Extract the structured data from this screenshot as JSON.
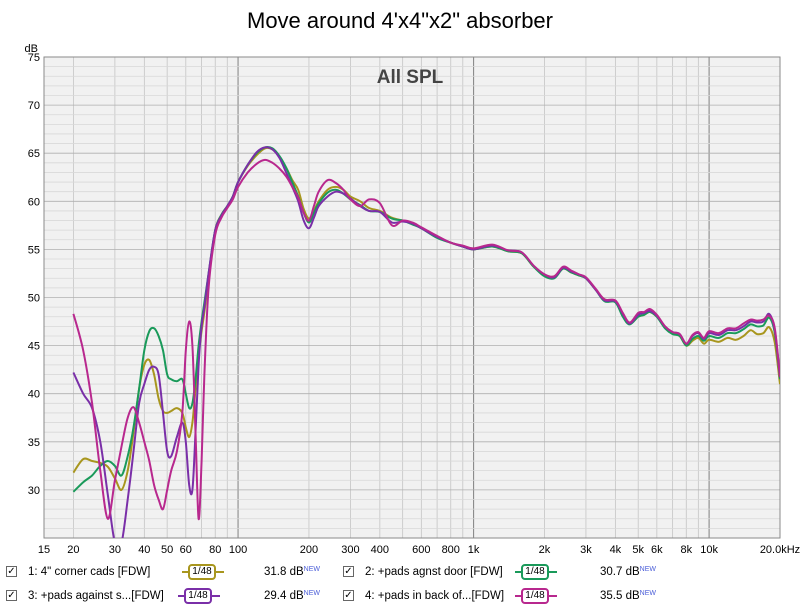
{
  "title": "Move around 4'x4\"x2\" absorber",
  "chart_data": {
    "type": "line",
    "annotation": "All SPL",
    "ylabel": "dB",
    "xunit": "Hz",
    "xscale": "log",
    "xlim": [
      15,
      20000
    ],
    "ylim": [
      25,
      75
    ],
    "yticks": [
      30,
      35,
      40,
      45,
      50,
      55,
      60,
      65,
      70,
      75
    ],
    "xticks": [
      {
        "v": 15,
        "label": "15"
      },
      {
        "v": 20,
        "label": "20"
      },
      {
        "v": 30,
        "label": "30"
      },
      {
        "v": 40,
        "label": "40"
      },
      {
        "v": 50,
        "label": "50"
      },
      {
        "v": 60,
        "label": "60"
      },
      {
        "v": 80,
        "label": "80"
      },
      {
        "v": 100,
        "label": "100"
      },
      {
        "v": 200,
        "label": "200"
      },
      {
        "v": 300,
        "label": "300"
      },
      {
        "v": 400,
        "label": "400"
      },
      {
        "v": 600,
        "label": "600"
      },
      {
        "v": 800,
        "label": "800"
      },
      {
        "v": 1000,
        "label": "1k"
      },
      {
        "v": 2000,
        "label": "2k"
      },
      {
        "v": 3000,
        "label": "3k"
      },
      {
        "v": 4000,
        "label": "4k"
      },
      {
        "v": 5000,
        "label": "5k"
      },
      {
        "v": 6000,
        "label": "6k"
      },
      {
        "v": 8000,
        "label": "8k"
      },
      {
        "v": 10000,
        "label": "10k"
      },
      {
        "v": 20000,
        "label": "20.0kHz"
      }
    ],
    "grid": true,
    "series": [
      {
        "name": "1: 4\" corner cads [FDW]",
        "color": "#a8961e",
        "x": [
          20,
          22,
          24,
          26,
          28,
          30,
          32,
          34,
          36,
          38,
          40,
          42,
          44,
          46,
          48,
          50,
          52,
          55,
          58,
          60,
          62,
          64,
          66,
          68,
          70,
          72,
          75,
          80,
          85,
          90,
          95,
          100,
          110,
          120,
          130,
          140,
          150,
          160,
          170,
          180,
          190,
          200,
          210,
          220,
          240,
          260,
          280,
          300,
          330,
          360,
          400,
          450,
          500,
          550,
          600,
          700,
          800,
          900,
          1000,
          1200,
          1400,
          1600,
          1800,
          2000,
          2200,
          2400,
          2600,
          2800,
          3000,
          3300,
          3600,
          4000,
          4300,
          4600,
          5000,
          5300,
          5600,
          6000,
          6500,
          7000,
          7500,
          8000,
          8500,
          9000,
          9500,
          10000,
          11000,
          12000,
          13000,
          14000,
          15000,
          16000,
          17000,
          18000,
          19000,
          20000
        ],
        "y": [
          31.8,
          33.2,
          33.0,
          32.8,
          32.4,
          31.2,
          30.0,
          32.0,
          36.0,
          40.5,
          43.0,
          43.5,
          42.0,
          39.5,
          38.2,
          38.0,
          38.2,
          38.5,
          38.0,
          36.5,
          35.5,
          37.0,
          40.5,
          44.0,
          46.5,
          48.5,
          52.0,
          57.0,
          58.6,
          59.5,
          60.5,
          62.0,
          63.7,
          64.8,
          65.5,
          65.4,
          64.6,
          63.5,
          62.2,
          61.2,
          59.2,
          58.2,
          59.0,
          60.0,
          61.2,
          61.5,
          61.2,
          60.5,
          60.0,
          59.3,
          59.0,
          58.3,
          58.0,
          57.7,
          57.2,
          56.3,
          55.7,
          55.3,
          55.0,
          55.3,
          54.8,
          54.6,
          53.2,
          52.3,
          52.2,
          53.0,
          52.6,
          52.3,
          52.0,
          50.8,
          49.8,
          49.6,
          48.3,
          47.3,
          48.0,
          48.2,
          48.5,
          48.0,
          47.0,
          46.3,
          46.0,
          45.0,
          45.5,
          45.8,
          45.2,
          45.6,
          45.4,
          45.8,
          45.6,
          46.0,
          46.6,
          46.2,
          46.3,
          46.9,
          45.3,
          41.0
        ]
      },
      {
        "name": "2: +pads agnst door [FDW]",
        "color": "#1a9a5a",
        "x": [
          20,
          22,
          24,
          26,
          28,
          30,
          32,
          34,
          36,
          38,
          40,
          42,
          44,
          46,
          48,
          50,
          52,
          55,
          58,
          60,
          62,
          64,
          66,
          68,
          70,
          72,
          75,
          80,
          85,
          90,
          95,
          100,
          110,
          120,
          130,
          140,
          150,
          160,
          170,
          180,
          190,
          200,
          210,
          220,
          240,
          260,
          280,
          300,
          330,
          360,
          400,
          450,
          500,
          550,
          600,
          700,
          800,
          900,
          1000,
          1200,
          1400,
          1600,
          1800,
          2000,
          2200,
          2400,
          2600,
          2800,
          3000,
          3300,
          3600,
          4000,
          4300,
          4600,
          5000,
          5300,
          5600,
          6000,
          6500,
          7000,
          7500,
          8000,
          8500,
          9000,
          9500,
          10000,
          11000,
          12000,
          13000,
          14000,
          15000,
          16000,
          17000,
          18000,
          19000,
          20000
        ],
        "y": [
          29.8,
          30.8,
          31.5,
          32.5,
          33.0,
          32.5,
          31.5,
          33.5,
          36.5,
          40.5,
          44.5,
          46.5,
          46.8,
          46.0,
          44.5,
          42.0,
          41.5,
          41.3,
          41.5,
          40.0,
          38.5,
          39.0,
          41.5,
          45.0,
          47.5,
          49.5,
          52.5,
          57.0,
          58.6,
          59.5,
          60.5,
          62.0,
          63.8,
          65.0,
          65.6,
          65.5,
          64.7,
          63.5,
          62.0,
          60.5,
          58.8,
          57.8,
          58.8,
          59.8,
          60.9,
          61.2,
          60.8,
          60.2,
          59.6,
          59.0,
          58.9,
          58.2,
          58.0,
          57.6,
          57.2,
          56.2,
          55.7,
          55.3,
          55.0,
          55.3,
          54.8,
          54.6,
          53.2,
          52.2,
          52.0,
          53.0,
          52.6,
          52.3,
          52.0,
          50.8,
          49.6,
          49.5,
          48.0,
          47.2,
          48.0,
          48.2,
          48.5,
          48.0,
          46.8,
          46.2,
          46.0,
          45.0,
          45.7,
          46.0,
          45.5,
          46.0,
          45.8,
          46.3,
          46.3,
          46.7,
          47.2,
          47.0,
          47.1,
          47.9,
          46.3,
          41.5
        ]
      },
      {
        "name": "3: +pads against s...[FDW]",
        "color": "#7a2fa8",
        "x": [
          20,
          22,
          24,
          26,
          28,
          30,
          32,
          34,
          36,
          38,
          40,
          42,
          44,
          46,
          48,
          50,
          52,
          55,
          58,
          60,
          62,
          64,
          66,
          68,
          70,
          72,
          75,
          80,
          85,
          90,
          95,
          100,
          110,
          120,
          130,
          140,
          150,
          160,
          170,
          180,
          190,
          200,
          210,
          220,
          240,
          260,
          280,
          300,
          330,
          360,
          400,
          450,
          500,
          550,
          600,
          700,
          800,
          900,
          1000,
          1200,
          1400,
          1600,
          1800,
          2000,
          2200,
          2400,
          2600,
          2800,
          3000,
          3300,
          3600,
          4000,
          4300,
          4600,
          5000,
          5300,
          5600,
          6000,
          6500,
          7000,
          7500,
          8000,
          8500,
          9000,
          9500,
          10000,
          11000,
          12000,
          13000,
          14000,
          15000,
          16000,
          17000,
          18000,
          19000,
          20000
        ],
        "y": [
          42.2,
          40.0,
          38.5,
          35.0,
          29.5,
          24.5,
          24.5,
          29.0,
          34.0,
          39.0,
          41.0,
          42.5,
          42.8,
          42.0,
          38.0,
          34.0,
          33.5,
          35.5,
          37.0,
          35.0,
          30.5,
          30.0,
          36.0,
          43.0,
          47.0,
          49.0,
          52.5,
          57.0,
          58.5,
          59.5,
          60.5,
          62.0,
          63.8,
          65.1,
          65.6,
          65.4,
          64.5,
          63.0,
          61.5,
          60.0,
          58.0,
          57.2,
          58.3,
          59.5,
          60.5,
          61.0,
          60.8,
          60.3,
          59.5,
          59.0,
          58.9,
          57.8,
          57.9,
          57.7,
          57.2,
          56.3,
          55.7,
          55.3,
          55.0,
          55.4,
          54.9,
          54.7,
          53.3,
          52.4,
          52.1,
          53.1,
          52.7,
          52.4,
          52.0,
          50.8,
          49.7,
          49.6,
          48.3,
          47.3,
          48.2,
          48.4,
          48.6,
          48.1,
          47.0,
          46.4,
          46.2,
          45.2,
          46.0,
          46.3,
          45.7,
          46.3,
          46.1,
          46.6,
          46.6,
          47.0,
          47.5,
          47.4,
          47.5,
          48.3,
          46.6,
          41.7
        ]
      },
      {
        "name": "4: +pads in back of...[FDW]",
        "color": "#b8288e",
        "x": [
          20,
          22,
          24,
          26,
          28,
          30,
          32,
          34,
          36,
          38,
          40,
          42,
          44,
          46,
          48,
          50,
          52,
          55,
          58,
          60,
          62,
          64,
          66,
          68,
          70,
          72,
          75,
          80,
          85,
          90,
          95,
          100,
          110,
          120,
          130,
          140,
          150,
          160,
          170,
          180,
          190,
          200,
          210,
          220,
          240,
          260,
          280,
          300,
          330,
          360,
          400,
          450,
          500,
          550,
          600,
          700,
          800,
          900,
          1000,
          1200,
          1400,
          1600,
          1800,
          2000,
          2200,
          2400,
          2600,
          2800,
          3000,
          3300,
          3600,
          4000,
          4300,
          4600,
          5000,
          5300,
          5600,
          6000,
          6500,
          7000,
          7500,
          8000,
          8500,
          9000,
          9500,
          10000,
          11000,
          12000,
          13000,
          14000,
          15000,
          16000,
          17000,
          18000,
          19000,
          20000
        ],
        "y": [
          48.3,
          44.5,
          39.0,
          32.0,
          27.0,
          31.0,
          34.5,
          37.5,
          38.6,
          37.0,
          35.0,
          33.0,
          30.5,
          29.0,
          28.0,
          30.0,
          32.0,
          34.0,
          38.0,
          44.5,
          47.5,
          45.0,
          36.0,
          27.0,
          33.0,
          42.0,
          51.0,
          56.5,
          58.3,
          59.3,
          60.2,
          61.5,
          63.0,
          63.9,
          64.3,
          64.0,
          63.4,
          62.6,
          61.5,
          60.4,
          58.8,
          58.0,
          59.5,
          61.0,
          62.2,
          61.9,
          61.2,
          60.2,
          59.5,
          60.2,
          59.8,
          57.5,
          58.0,
          57.8,
          57.3,
          56.4,
          55.7,
          55.4,
          55.1,
          55.5,
          54.9,
          54.7,
          53.3,
          52.4,
          52.2,
          53.2,
          52.8,
          52.4,
          52.1,
          50.9,
          49.8,
          49.7,
          48.4,
          47.4,
          48.4,
          48.5,
          48.8,
          48.2,
          47.0,
          46.4,
          46.2,
          45.2,
          46.1,
          46.4,
          45.8,
          46.5,
          46.3,
          46.8,
          46.8,
          47.3,
          47.7,
          47.6,
          47.7,
          48.1,
          46.8,
          41.8
        ]
      }
    ]
  },
  "legend": [
    {
      "check": "✓",
      "label": "1: 4\" corner cads [FDW]",
      "smoothing": "1/48",
      "level": "31.8 dB",
      "tag": "NEW",
      "color": "#a8961e"
    },
    {
      "check": "✓",
      "label": "2: +pads agnst door [FDW]",
      "smoothing": "1/48",
      "level": "30.7 dB",
      "tag": "NEW",
      "color": "#1a9a5a"
    },
    {
      "check": "✓",
      "label": "3: +pads against s...[FDW]",
      "smoothing": "1/48",
      "level": "29.4 dB",
      "tag": "NEW",
      "color": "#7a2fa8"
    },
    {
      "check": "✓",
      "label": "4: +pads in back of...[FDW]",
      "smoothing": "1/48",
      "level": "35.5 dB",
      "tag": "NEW",
      "color": "#b8288e"
    }
  ]
}
